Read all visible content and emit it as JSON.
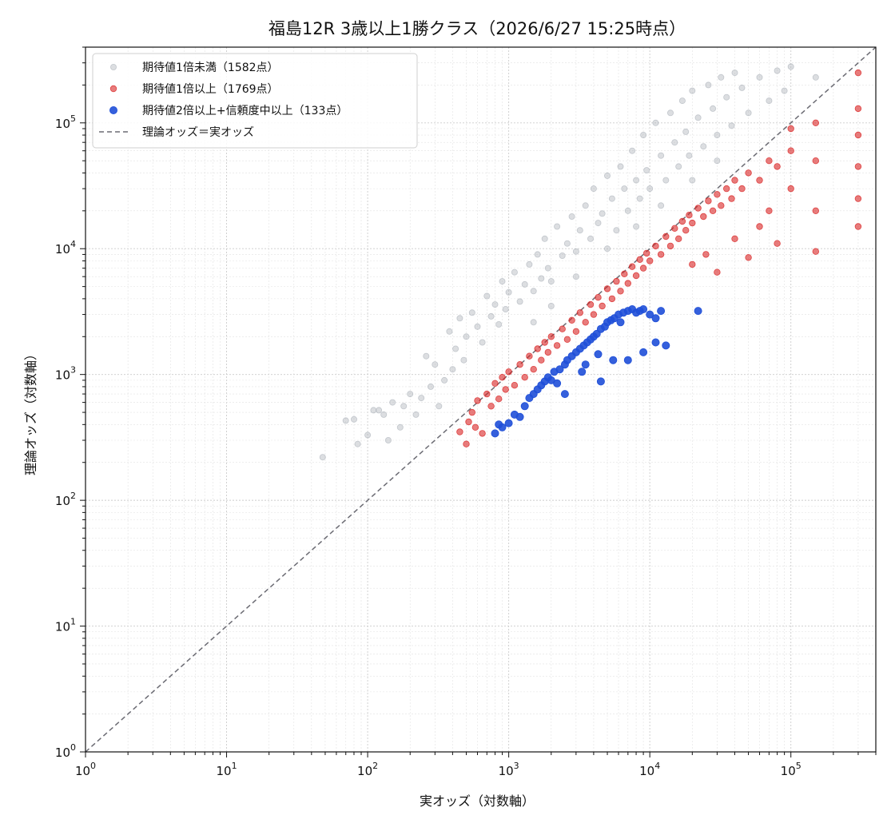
{
  "chart_data": {
    "type": "scatter",
    "title": "福島12R 3歳以上1勝クラス（2026/6/27 15:25時点）",
    "xlabel": "実オッズ（対数軸）",
    "ylabel": "理論オッズ（対数軸）",
    "xscale": "log",
    "yscale": "log",
    "xlim": [
      1,
      400000
    ],
    "ylim": [
      1,
      400000
    ],
    "grid": true,
    "legend_position": "top-left",
    "x_ticks": [
      {
        "base": "10",
        "exp": "0"
      },
      {
        "base": "10",
        "exp": "1"
      },
      {
        "base": "10",
        "exp": "2"
      },
      {
        "base": "10",
        "exp": "3"
      },
      {
        "base": "10",
        "exp": "4"
      },
      {
        "base": "10",
        "exp": "5"
      }
    ],
    "y_ticks": [
      {
        "base": "10",
        "exp": "0"
      },
      {
        "base": "10",
        "exp": "1"
      },
      {
        "base": "10",
        "exp": "2"
      },
      {
        "base": "10",
        "exp": "3"
      },
      {
        "base": "10",
        "exp": "4"
      },
      {
        "base": "10",
        "exp": "5"
      }
    ],
    "reference_line": {
      "name": "理論オッズ＝実オッズ",
      "from": [
        1,
        1
      ],
      "to": [
        400000,
        400000
      ],
      "color": "#6b6b73",
      "style": "dashed"
    },
    "series": [
      {
        "name": "期待値1倍未満（1582点）",
        "color": "#a7adb5",
        "opacity": 0.4,
        "count": 1582,
        "points": [
          [
            48,
            220
          ],
          [
            70,
            430
          ],
          [
            80,
            440
          ],
          [
            85,
            280
          ],
          [
            100,
            330
          ],
          [
            110,
            520
          ],
          [
            120,
            520
          ],
          [
            130,
            480
          ],
          [
            140,
            300
          ],
          [
            150,
            600
          ],
          [
            170,
            380
          ],
          [
            180,
            560
          ],
          [
            200,
            700
          ],
          [
            220,
            480
          ],
          [
            240,
            650
          ],
          [
            260,
            1400
          ],
          [
            280,
            800
          ],
          [
            300,
            1200
          ],
          [
            320,
            560
          ],
          [
            350,
            900
          ],
          [
            380,
            2200
          ],
          [
            400,
            1100
          ],
          [
            420,
            1600
          ],
          [
            450,
            2800
          ],
          [
            480,
            1300
          ],
          [
            500,
            2000
          ],
          [
            550,
            3100
          ],
          [
            600,
            2400
          ],
          [
            650,
            1800
          ],
          [
            700,
            4200
          ],
          [
            750,
            2900
          ],
          [
            800,
            3600
          ],
          [
            850,
            2500
          ],
          [
            900,
            5500
          ],
          [
            950,
            3300
          ],
          [
            1000,
            4500
          ],
          [
            1100,
            6500
          ],
          [
            1200,
            3800
          ],
          [
            1300,
            5200
          ],
          [
            1400,
            7500
          ],
          [
            1500,
            4600
          ],
          [
            1600,
            9000
          ],
          [
            1700,
            5800
          ],
          [
            1800,
            12000
          ],
          [
            1900,
            7000
          ],
          [
            2000,
            5500
          ],
          [
            2200,
            15000
          ],
          [
            2400,
            8800
          ],
          [
            2600,
            11000
          ],
          [
            2800,
            18000
          ],
          [
            3000,
            9500
          ],
          [
            3200,
            14000
          ],
          [
            3500,
            22000
          ],
          [
            3800,
            12000
          ],
          [
            4000,
            30000
          ],
          [
            4300,
            16000
          ],
          [
            4600,
            19000
          ],
          [
            5000,
            38000
          ],
          [
            5400,
            25000
          ],
          [
            5800,
            14000
          ],
          [
            6200,
            45000
          ],
          [
            6600,
            30000
          ],
          [
            7000,
            20000
          ],
          [
            7500,
            60000
          ],
          [
            8000,
            35000
          ],
          [
            8500,
            25000
          ],
          [
            9000,
            80000
          ],
          [
            9500,
            42000
          ],
          [
            10000,
            30000
          ],
          [
            11000,
            100000
          ],
          [
            12000,
            55000
          ],
          [
            13000,
            35000
          ],
          [
            14000,
            120000
          ],
          [
            15000,
            70000
          ],
          [
            16000,
            45000
          ],
          [
            17000,
            150000
          ],
          [
            18000,
            85000
          ],
          [
            19000,
            55000
          ],
          [
            20000,
            180000
          ],
          [
            22000,
            110000
          ],
          [
            24000,
            65000
          ],
          [
            26000,
            200000
          ],
          [
            28000,
            130000
          ],
          [
            30000,
            80000
          ],
          [
            32000,
            230000
          ],
          [
            35000,
            160000
          ],
          [
            38000,
            95000
          ],
          [
            40000,
            250000
          ],
          [
            45000,
            190000
          ],
          [
            50000,
            120000
          ],
          [
            60000,
            230000
          ],
          [
            70000,
            150000
          ],
          [
            80000,
            260000
          ],
          [
            90000,
            180000
          ],
          [
            100000,
            280000
          ],
          [
            150000,
            230000
          ],
          [
            3000,
            6000
          ],
          [
            5000,
            10000
          ],
          [
            8000,
            15000
          ],
          [
            12000,
            22000
          ],
          [
            20000,
            35000
          ],
          [
            30000,
            50000
          ],
          [
            2000,
            3500
          ],
          [
            1500,
            2600
          ]
        ]
      },
      {
        "name": "期待値1倍以上（1769点）",
        "color": "#d92525",
        "opacity": 0.6,
        "count": 1769,
        "points": [
          [
            450,
            350
          ],
          [
            500,
            280
          ],
          [
            520,
            420
          ],
          [
            550,
            500
          ],
          [
            580,
            380
          ],
          [
            600,
            620
          ],
          [
            650,
            340
          ],
          [
            700,
            700
          ],
          [
            750,
            560
          ],
          [
            800,
            850
          ],
          [
            850,
            640
          ],
          [
            900,
            950
          ],
          [
            950,
            760
          ],
          [
            1000,
            1050
          ],
          [
            1100,
            820
          ],
          [
            1200,
            1200
          ],
          [
            1300,
            950
          ],
          [
            1400,
            1400
          ],
          [
            1500,
            1100
          ],
          [
            1600,
            1600
          ],
          [
            1700,
            1300
          ],
          [
            1800,
            1800
          ],
          [
            1900,
            1500
          ],
          [
            2000,
            2000
          ],
          [
            2200,
            1700
          ],
          [
            2400,
            2300
          ],
          [
            2600,
            1900
          ],
          [
            2800,
            2700
          ],
          [
            3000,
            2200
          ],
          [
            3200,
            3100
          ],
          [
            3500,
            2600
          ],
          [
            3800,
            3600
          ],
          [
            4000,
            3000
          ],
          [
            4300,
            4100
          ],
          [
            4600,
            3500
          ],
          [
            5000,
            4800
          ],
          [
            5400,
            4000
          ],
          [
            5800,
            5500
          ],
          [
            6200,
            4600
          ],
          [
            6600,
            6300
          ],
          [
            7000,
            5300
          ],
          [
            7500,
            7200
          ],
          [
            8000,
            6100
          ],
          [
            8500,
            8200
          ],
          [
            9000,
            7000
          ],
          [
            9500,
            9200
          ],
          [
            10000,
            8000
          ],
          [
            11000,
            10500
          ],
          [
            12000,
            9000
          ],
          [
            13000,
            12500
          ],
          [
            14000,
            10500
          ],
          [
            15000,
            14500
          ],
          [
            16000,
            12000
          ],
          [
            17000,
            16500
          ],
          [
            18000,
            14000
          ],
          [
            19000,
            18500
          ],
          [
            20000,
            16000
          ],
          [
            22000,
            21000
          ],
          [
            24000,
            18000
          ],
          [
            26000,
            24000
          ],
          [
            28000,
            20000
          ],
          [
            30000,
            27000
          ],
          [
            32000,
            22000
          ],
          [
            35000,
            30000
          ],
          [
            38000,
            25000
          ],
          [
            40000,
            35000
          ],
          [
            45000,
            30000
          ],
          [
            50000,
            40000
          ],
          [
            60000,
            35000
          ],
          [
            70000,
            50000
          ],
          [
            80000,
            45000
          ],
          [
            100000,
            60000
          ],
          [
            20000,
            7500
          ],
          [
            25000,
            9000
          ],
          [
            30000,
            6500
          ],
          [
            40000,
            12000
          ],
          [
            50000,
            8500
          ],
          [
            60000,
            15000
          ],
          [
            70000,
            20000
          ],
          [
            80000,
            11000
          ],
          [
            100000,
            90000
          ],
          [
            100000,
            30000
          ],
          [
            150000,
            100000
          ],
          [
            150000,
            50000
          ],
          [
            150000,
            20000
          ],
          [
            150000,
            9500
          ],
          [
            300000,
            250000
          ],
          [
            300000,
            130000
          ],
          [
            300000,
            80000
          ],
          [
            300000,
            45000
          ],
          [
            300000,
            25000
          ],
          [
            300000,
            15000
          ]
        ]
      },
      {
        "name": "期待値2倍以上+信頼度中以上（133点）",
        "color": "#1f4fd8",
        "opacity": 0.9,
        "count": 133,
        "points": [
          [
            800,
            340
          ],
          [
            850,
            400
          ],
          [
            900,
            380
          ],
          [
            1000,
            410
          ],
          [
            1100,
            480
          ],
          [
            1200,
            460
          ],
          [
            1300,
            560
          ],
          [
            1400,
            650
          ],
          [
            1500,
            700
          ],
          [
            1600,
            760
          ],
          [
            1700,
            820
          ],
          [
            1800,
            880
          ],
          [
            2000,
            900
          ],
          [
            2100,
            1050
          ],
          [
            2300,
            1100
          ],
          [
            2500,
            1200
          ],
          [
            2600,
            1300
          ],
          [
            2800,
            1400
          ],
          [
            3000,
            1500
          ],
          [
            3200,
            1600
          ],
          [
            3400,
            1700
          ],
          [
            3600,
            1800
          ],
          [
            3800,
            1900
          ],
          [
            4000,
            2000
          ],
          [
            4200,
            2100
          ],
          [
            4500,
            2300
          ],
          [
            4800,
            2400
          ],
          [
            5000,
            2600
          ],
          [
            5300,
            2700
          ],
          [
            5600,
            2800
          ],
          [
            6000,
            3000
          ],
          [
            6500,
            3100
          ],
          [
            7000,
            3200
          ],
          [
            7500,
            3300
          ],
          [
            8000,
            3100
          ],
          [
            8500,
            3200
          ],
          [
            9000,
            3300
          ],
          [
            10000,
            3000
          ],
          [
            11000,
            2800
          ],
          [
            12000,
            3200
          ],
          [
            13000,
            1700
          ],
          [
            11000,
            1800
          ],
          [
            9000,
            1500
          ],
          [
            7000,
            1300
          ],
          [
            5500,
            1300
          ],
          [
            4500,
            880
          ],
          [
            3500,
            1200
          ],
          [
            2500,
            700
          ],
          [
            22000,
            3200
          ],
          [
            3300,
            1050
          ],
          [
            4300,
            1450
          ],
          [
            6200,
            2600
          ],
          [
            2200,
            850
          ],
          [
            1900,
            950
          ]
        ]
      }
    ]
  }
}
